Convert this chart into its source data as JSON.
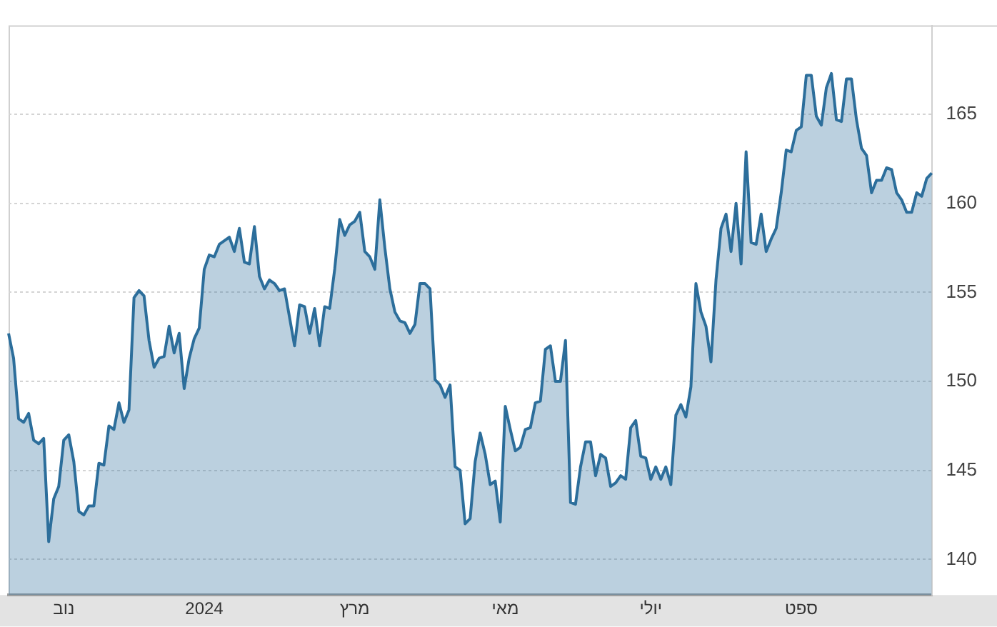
{
  "chart_data": {
    "type": "area",
    "categories": [
      null,
      null,
      null,
      null,
      null,
      null,
      null,
      null,
      null,
      null,
      null,
      "נוב",
      null,
      null,
      null,
      null,
      null,
      null,
      null,
      null,
      null,
      null,
      null,
      null,
      null,
      null,
      null,
      null,
      null,
      null,
      null,
      null,
      null,
      null,
      null,
      null,
      null,
      null,
      null,
      "2024",
      null,
      null,
      null,
      null,
      null,
      null,
      null,
      null,
      null,
      null,
      null,
      null,
      null,
      null,
      null,
      null,
      null,
      null,
      null,
      null,
      null,
      null,
      null,
      null,
      null,
      null,
      null,
      null,
      null,
      "מרץ",
      null,
      null,
      null,
      null,
      null,
      null,
      null,
      null,
      null,
      null,
      null,
      null,
      null,
      null,
      null,
      null,
      null,
      null,
      null,
      null,
      null,
      null,
      null,
      null,
      null,
      null,
      null,
      null,
      null,
      "מאי",
      null,
      null,
      null,
      null,
      null,
      null,
      null,
      null,
      null,
      null,
      null,
      null,
      null,
      null,
      null,
      null,
      null,
      null,
      null,
      null,
      null,
      null,
      null,
      null,
      null,
      null,
      null,
      null,
      "יולי",
      null,
      null,
      null,
      null,
      null,
      null,
      null,
      null,
      null,
      null,
      null,
      null,
      null,
      null,
      null,
      null,
      null,
      null,
      null,
      null,
      null,
      null,
      null,
      null,
      null,
      null,
      null,
      null,
      null,
      "ספט",
      null,
      null,
      null,
      null,
      null,
      null,
      null,
      null,
      null,
      null,
      null,
      null,
      null,
      null,
      null,
      null,
      null,
      null,
      null,
      null,
      null,
      null,
      null,
      null,
      null,
      null
    ],
    "ylim": [
      138,
      170
    ],
    "yticks": [
      140,
      145,
      150,
      155,
      160,
      165
    ],
    "grid": "y",
    "legend": false,
    "series": [
      {
        "color": "#2c6e9b",
        "values": [
          152.7,
          151.3,
          147.9,
          147.7,
          148.2,
          146.7,
          146.5,
          146.8,
          141.0,
          143.4,
          144.1,
          146.7,
          147.0,
          145.5,
          142.7,
          142.5,
          143.0,
          143.0,
          145.4,
          145.3,
          147.5,
          147.3,
          148.8,
          147.7,
          148.4,
          154.7,
          155.1,
          154.8,
          152.3,
          150.8,
          151.3,
          151.4,
          153.1,
          151.6,
          152.7,
          149.6,
          151.3,
          152.4,
          153.0,
          156.3,
          157.1,
          157.0,
          157.7,
          157.9,
          158.1,
          157.3,
          158.6,
          156.7,
          156.6,
          158.7,
          155.9,
          155.2,
          155.7,
          155.5,
          155.1,
          155.2,
          153.6,
          152.0,
          154.3,
          154.2,
          152.7,
          154.1,
          152.0,
          154.2,
          154.1,
          156.3,
          159.1,
          158.2,
          158.8,
          159.0,
          159.5,
          157.3,
          157.0,
          156.3,
          160.2,
          157.5,
          155.2,
          153.9,
          153.4,
          153.3,
          152.7,
          153.2,
          155.5,
          155.5,
          155.2,
          150.1,
          149.8,
          149.1,
          149.8,
          145.2,
          145.0,
          142.0,
          142.3,
          145.5,
          147.1,
          145.9,
          144.2,
          144.4,
          142.1,
          148.6,
          147.3,
          146.1,
          146.3,
          147.3,
          147.4,
          148.8,
          148.9,
          151.8,
          152.0,
          150.0,
          150.0,
          152.3,
          143.2,
          143.1,
          145.2,
          146.6,
          146.6,
          144.7,
          145.9,
          145.7,
          144.1,
          144.3,
          144.7,
          144.5,
          147.4,
          147.8,
          145.8,
          145.7,
          144.5,
          145.2,
          144.5,
          145.2,
          144.2,
          148.1,
          148.7,
          148.0,
          149.7,
          155.5,
          153.9,
          153.1,
          151.1,
          155.7,
          158.6,
          159.4,
          157.3,
          160.0,
          156.6,
          162.9,
          157.8,
          157.7,
          159.4,
          157.3,
          158.0,
          158.6,
          160.6,
          163.0,
          162.9,
          164.1,
          164.3,
          167.2,
          167.2,
          164.9,
          164.4,
          166.5,
          167.3,
          164.7,
          164.6,
          167.0,
          167.0,
          164.7,
          163.1,
          162.7,
          160.6,
          161.3,
          161.3,
          162.0,
          161.9,
          160.6,
          160.2,
          159.5,
          159.5,
          160.6,
          160.4,
          161.4,
          161.7
        ]
      }
    ]
  }
}
